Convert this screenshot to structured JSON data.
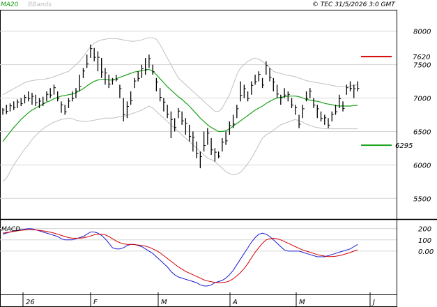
{
  "copyright": "© TEC 31/5/2026 3:0 GMT",
  "legend": {
    "ma": "MA20",
    "bb": "BBands"
  },
  "macd_label": "MACD",
  "colors": {
    "ma": "#1aa11a",
    "bb": "#c0c0c0",
    "price": "#000000",
    "resistance": "#d40000",
    "support": "#1aa11a",
    "macd": "#1a1ad0",
    "signal": "#d40000",
    "grid": "#d6d6d6"
  },
  "levels": {
    "resistance": 7620,
    "support": 6295,
    "resistance_label": "7620",
    "support_label": "6295"
  },
  "y_ticks": [
    "8000",
    "7500",
    "7000",
    "6500",
    "6000",
    "5500"
  ],
  "macd_ticks": [
    "200",
    "100",
    "0.00"
  ],
  "x_ticks": [
    "26",
    "F",
    "M",
    "A",
    "M",
    "J"
  ],
  "chart_data": {
    "type": "line",
    "price_ylim": [
      5200,
      8300
    ],
    "ohlc_last": [
      [
        6850,
        6750
      ],
      [
        6900,
        6760
      ],
      [
        6920,
        6800
      ],
      [
        6950,
        6820
      ],
      [
        6980,
        6850
      ],
      [
        7000,
        6880
      ],
      [
        7050,
        6920
      ],
      [
        7100,
        6950
      ],
      [
        7080,
        6900
      ],
      [
        7050,
        6880
      ],
      [
        7000,
        6850
      ],
      [
        7020,
        6880
      ],
      [
        7100,
        6950
      ],
      [
        7150,
        7000
      ],
      [
        7200,
        7050
      ],
      [
        7100,
        6950
      ],
      [
        6950,
        6780
      ],
      [
        6900,
        6750
      ],
      [
        7000,
        6850
      ],
      [
        7100,
        6950
      ],
      [
        7150,
        7000
      ],
      [
        7350,
        7100
      ],
      [
        7450,
        7300
      ],
      [
        7650,
        7450
      ],
      [
        7800,
        7600
      ],
      [
        7750,
        7550
      ],
      [
        7700,
        7400
      ],
      [
        7600,
        7300
      ],
      [
        7450,
        7200
      ],
      [
        7350,
        7150
      ],
      [
        7300,
        7200
      ],
      [
        7350,
        7250
      ],
      [
        7200,
        7000
      ],
      [
        7000,
        6650
      ],
      [
        6950,
        6700
      ],
      [
        7100,
        6900
      ],
      [
        7300,
        7150
      ],
      [
        7400,
        7250
      ],
      [
        7500,
        7300
      ],
      [
        7600,
        7350
      ],
      [
        7650,
        7450
      ],
      [
        7500,
        7350
      ],
      [
        7300,
        7100
      ],
      [
        7150,
        6950
      ],
      [
        7000,
        6800
      ],
      [
        6900,
        6700
      ],
      [
        6800,
        6400
      ],
      [
        6700,
        6500
      ],
      [
        6850,
        6700
      ],
      [
        6800,
        6600
      ],
      [
        6700,
        6450
      ],
      [
        6600,
        6350
      ],
      [
        6500,
        6200
      ],
      [
        6350,
        6100
      ],
      [
        6200,
        5950
      ],
      [
        6500,
        6200
      ],
      [
        6550,
        6300
      ],
      [
        6400,
        6150
      ],
      [
        6250,
        6050
      ],
      [
        6200,
        6100
      ],
      [
        6400,
        6200
      ],
      [
        6500,
        6300
      ],
      [
        6650,
        6450
      ],
      [
        6750,
        6550
      ],
      [
        6900,
        6700
      ],
      [
        7250,
        6950
      ],
      [
        7200,
        7000
      ],
      [
        7100,
        6950
      ],
      [
        7250,
        7050
      ],
      [
        7350,
        7200
      ],
      [
        7400,
        7250
      ],
      [
        7300,
        7150
      ],
      [
        7550,
        7350
      ],
      [
        7450,
        7250
      ],
      [
        7300,
        7100
      ],
      [
        7200,
        7000
      ],
      [
        7050,
        6900
      ],
      [
        7150,
        7000
      ],
      [
        7100,
        6950
      ],
      [
        7000,
        6850
      ],
      [
        6900,
        6750
      ],
      [
        6750,
        6550
      ],
      [
        6900,
        6700
      ],
      [
        7100,
        6950
      ],
      [
        7150,
        7000
      ],
      [
        7000,
        6850
      ],
      [
        6900,
        6700
      ],
      [
        6800,
        6650
      ],
      [
        6750,
        6600
      ],
      [
        6700,
        6550
      ],
      [
        6800,
        6650
      ],
      [
        6900,
        6750
      ],
      [
        7050,
        6850
      ],
      [
        6950,
        6800
      ],
      [
        7200,
        7050
      ],
      [
        7250,
        7100
      ],
      [
        7200,
        7000
      ],
      [
        7250,
        7100
      ]
    ],
    "ma20": [
      6350,
      6420,
      6490,
      6560,
      6620,
      6680,
      6730,
      6780,
      6820,
      6850,
      6880,
      6910,
      6940,
      6960,
      6990,
      7010,
      7030,
      7040,
      7050,
      7060,
      7080,
      7110,
      7140,
      7180,
      7220,
      7250,
      7270,
      7280,
      7280,
      7270,
      7270,
      7290,
      7310,
      7330,
      7350,
      7370,
      7390,
      7400,
      7410,
      7420,
      7430,
      7400,
      7350,
      7290,
      7230,
      7170,
      7120,
      7070,
      7020,
      6980,
      6930,
      6880,
      6820,
      6760,
      6700,
      6650,
      6600,
      6560,
      6530,
      6500,
      6500,
      6510,
      6540,
      6580,
      6620,
      6660,
      6700,
      6740,
      6780,
      6820,
      6850,
      6880,
      6920,
      6950,
      6980,
      7000,
      7010,
      7020,
      7030,
      7030,
      7030,
      7020,
      7000,
      6980,
      6970,
      6960,
      6950,
      6940,
      6920,
      6910,
      6900,
      6890,
      6880,
      6880,
      6880,
      6880,
      6890,
      6890
    ],
    "bb_upper": [
      7050,
      7080,
      7110,
      7140,
      7170,
      7200,
      7230,
      7250,
      7260,
      7270,
      7280,
      7280,
      7290,
      7300,
      7320,
      7340,
      7360,
      7380,
      7400,
      7450,
      7500,
      7550,
      7620,
      7700,
      7770,
      7820,
      7850,
      7870,
      7880,
      7890,
      7890,
      7890,
      7880,
      7870,
      7860,
      7850,
      7850,
      7860,
      7870,
      7890,
      7900,
      7900,
      7880,
      7800,
      7700,
      7600,
      7500,
      7400,
      7300,
      7250,
      7200,
      7150,
      7100,
      7050,
      7000,
      6950,
      6900,
      6850,
      6800,
      6800,
      6850,
      6950,
      7050,
      7200,
      7350,
      7450,
      7500,
      7550,
      7580,
      7600,
      7580,
      7550,
      7500,
      7450,
      7400,
      7380,
      7370,
      7350,
      7340,
      7330,
      7320,
      7300,
      7280,
      7260,
      7250,
      7240,
      7230,
      7220,
      7210,
      7200,
      7190,
      7180,
      7170,
      7170,
      7170,
      7180,
      7190,
      7200
    ],
    "bb_lower": [
      5750,
      5800,
      5900,
      6000,
      6080,
      6160,
      6240,
      6300,
      6380,
      6440,
      6490,
      6540,
      6580,
      6610,
      6640,
      6660,
      6680,
      6690,
      6700,
      6690,
      6670,
      6660,
      6650,
      6650,
      6660,
      6670,
      6680,
      6690,
      6700,
      6700,
      6700,
      6710,
      6720,
      6730,
      6740,
      6760,
      6780,
      6800,
      6820,
      6850,
      6880,
      6850,
      6800,
      6750,
      6700,
      6650,
      6600,
      6550,
      6500,
      6450,
      6400,
      6350,
      6300,
      6250,
      6200,
      6150,
      6100,
      6080,
      6050,
      6000,
      5950,
      5900,
      5870,
      5850,
      5860,
      5890,
      5950,
      6020,
      6100,
      6200,
      6300,
      6400,
      6450,
      6480,
      6520,
      6560,
      6600,
      6620,
      6640,
      6660,
      6680,
      6660,
      6640,
      6610,
      6590,
      6570,
      6560,
      6550,
      6540,
      6540,
      6540,
      6540,
      6540,
      6540,
      6540,
      6540,
      6540,
      6540
    ],
    "macd": [
      150,
      160,
      170,
      180,
      185,
      190,
      195,
      200,
      198,
      190,
      180,
      170,
      160,
      150,
      140,
      130,
      110,
      100,
      100,
      100,
      110,
      120,
      130,
      150,
      170,
      170,
      160,
      140,
      110,
      70,
      30,
      20,
      20,
      30,
      50,
      60,
      60,
      50,
      40,
      20,
      0,
      -20,
      -50,
      -80,
      -110,
      -140,
      -180,
      -210,
      -230,
      -240,
      -250,
      -260,
      -270,
      -280,
      -300,
      -310,
      -310,
      -300,
      -280,
      -270,
      -260,
      -240,
      -210,
      -170,
      -120,
      -70,
      -20,
      30,
      80,
      120,
      150,
      160,
      150,
      130,
      100,
      70,
      40,
      10,
      0,
      0,
      0,
      0,
      -10,
      -20,
      -30,
      -40,
      -50,
      -50,
      -50,
      -40,
      -30,
      -20,
      -10,
      0,
      10,
      20,
      40,
      60
    ],
    "signal": [
      160,
      165,
      170,
      175,
      180,
      185,
      188,
      190,
      190,
      188,
      185,
      180,
      175,
      168,
      160,
      150,
      140,
      130,
      120,
      115,
      115,
      115,
      118,
      125,
      135,
      145,
      150,
      150,
      145,
      130,
      110,
      90,
      75,
      65,
      60,
      60,
      58,
      55,
      50,
      45,
      35,
      20,
      5,
      -15,
      -40,
      -65,
      -90,
      -115,
      -140,
      -160,
      -180,
      -195,
      -210,
      -225,
      -240,
      -255,
      -265,
      -272,
      -278,
      -280,
      -280,
      -275,
      -265,
      -245,
      -220,
      -190,
      -155,
      -110,
      -60,
      -10,
      30,
      70,
      100,
      110,
      115,
      110,
      100,
      85,
      70,
      55,
      40,
      25,
      10,
      0,
      -10,
      -20,
      -30,
      -38,
      -44,
      -48,
      -48,
      -45,
      -40,
      -32,
      -22,
      -12,
      0,
      12
    ],
    "macd_ylim": [
      -360,
      260
    ]
  }
}
